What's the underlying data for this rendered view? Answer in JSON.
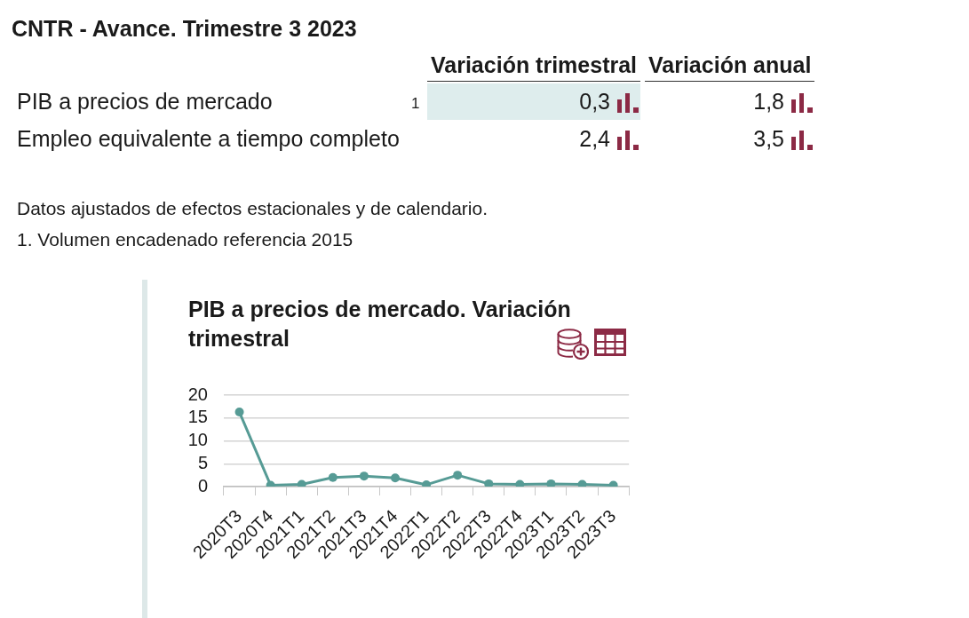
{
  "chart_data": [
    {
      "type": "other",
      "title": "CNTR - Avance. Trimestre 3 2023",
      "categories": [
        "PIB a precios de mercado",
        "Empleo equivalente a tiempo completo"
      ],
      "series": [
        {
          "name": "Variación trimestral",
          "values": [
            0.3,
            2.4
          ],
          "value_labels": [
            "0,3",
            "2,4"
          ]
        },
        {
          "name": "Variación anual",
          "values": [
            1.8,
            3.5
          ],
          "value_labels": [
            "1,8",
            "3,5"
          ]
        }
      ],
      "annotations": [
        {
          "text": "1",
          "y": "PIB a precios de mercado"
        },
        "Datos ajustados de efectos estacionales y de calendario.",
        "1. Volumen encadenado referencia 2015"
      ]
    },
    {
      "type": "line",
      "title": "PIB a precios de mercado. Variación trimestral",
      "categories": [
        "2020T3",
        "2020T4",
        "2021T1",
        "2021T2",
        "2021T3",
        "2021T4",
        "2022T1",
        "2022T2",
        "2022T3",
        "2022T4",
        "2023T1",
        "2023T2",
        "2023T3"
      ],
      "values": [
        16.3,
        0.3,
        0.5,
        2.0,
        2.3,
        1.9,
        0.4,
        2.5,
        0.6,
        0.5,
        0.6,
        0.5,
        0.3
      ],
      "color": "#569b95",
      "ylim": [
        0,
        20
      ],
      "yticks": [
        0,
        5,
        10,
        15,
        20
      ],
      "grid": "y",
      "marker": "circle"
    }
  ]
}
